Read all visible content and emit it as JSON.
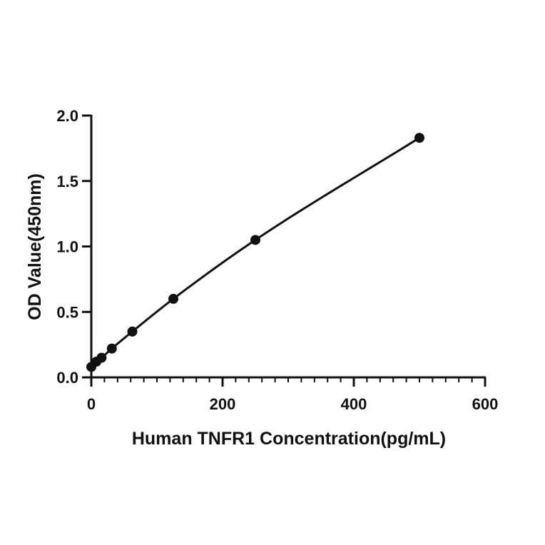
{
  "chart_data": {
    "type": "scatter",
    "title": "",
    "xlabel": "Human TNFR1 Concentration(pg/mL)",
    "ylabel": "OD Value(450nm)",
    "xlim": [
      0,
      600
    ],
    "ylim": [
      0,
      2.0
    ],
    "x_ticks": [
      "0",
      "200",
      "400",
      "600"
    ],
    "y_ticks": [
      "0.0",
      "0.5",
      "1.0",
      "1.5",
      "2.0"
    ],
    "x_tick_values": [
      0,
      200,
      400,
      600
    ],
    "y_tick_values": [
      0,
      0.5,
      1.0,
      1.5,
      2.0
    ],
    "x_minor_step": 20,
    "grid": false,
    "fitted_curve": true,
    "series": [
      {
        "x": [
          0,
          7.8,
          15.6,
          31.25,
          62.5,
          125,
          250,
          500
        ],
        "values": [
          0.08,
          0.12,
          0.15,
          0.22,
          0.35,
          0.6,
          1.05,
          1.83
        ]
      }
    ],
    "colors": {
      "marks": "#111111"
    }
  }
}
